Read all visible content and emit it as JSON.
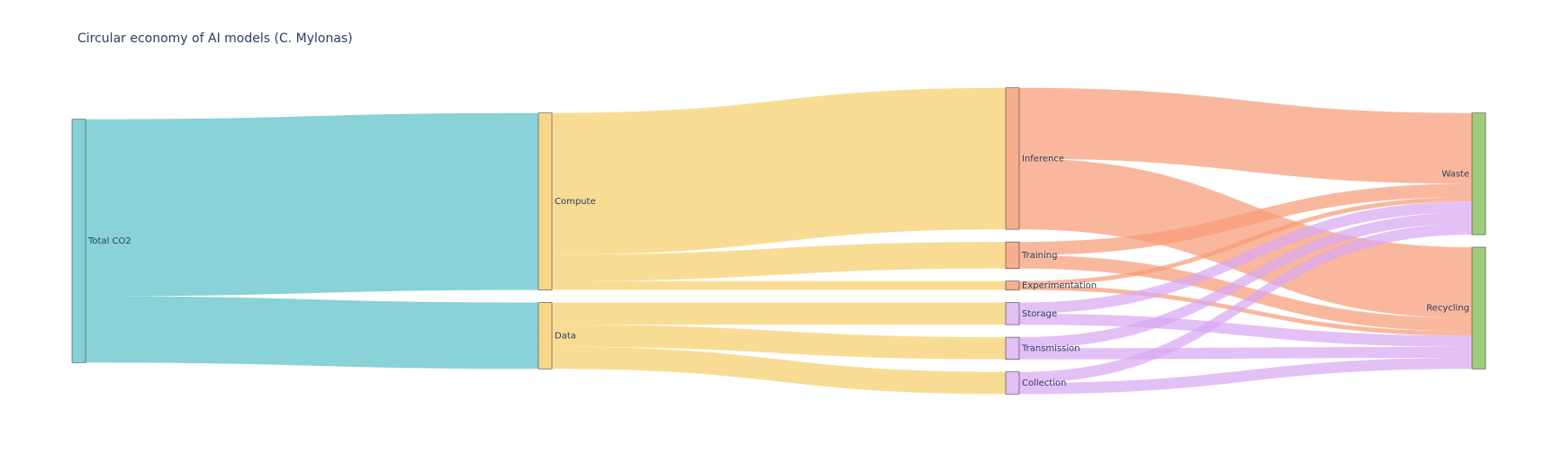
{
  "chart_data": {
    "type": "sankey",
    "title": "Circular economy of AI models (C. Mylonas)",
    "node_colors": {
      "source": "#87d1d6",
      "process": "#f8d78b",
      "model": "#f7ae8d",
      "data": "#e2bff5",
      "end": "#9fcd7c"
    },
    "link_colors": {
      "teal": "#5bc0c7",
      "yellow": "#f6ce6b",
      "salmon": "#f69d77",
      "lilac": "#d8a8f3"
    },
    "nodes": [
      {
        "id": "total",
        "label": "Total CO2",
        "column": 0,
        "color": "source"
      },
      {
        "id": "compute",
        "label": "Compute",
        "column": 1,
        "color": "process"
      },
      {
        "id": "data",
        "label": "Data",
        "column": 1,
        "color": "process"
      },
      {
        "id": "inference",
        "label": "Inference",
        "column": 2,
        "color": "model"
      },
      {
        "id": "training",
        "label": "Training",
        "column": 2,
        "color": "model"
      },
      {
        "id": "experimentation",
        "label": "Experimentation",
        "column": 2,
        "color": "model"
      },
      {
        "id": "storage",
        "label": "Storage",
        "column": 2,
        "color": "data"
      },
      {
        "id": "transmission",
        "label": "Transmission",
        "column": 2,
        "color": "data"
      },
      {
        "id": "collection",
        "label": "Collection",
        "column": 2,
        "color": "data"
      },
      {
        "id": "waste",
        "label": "Waste",
        "column": 3,
        "color": "end"
      },
      {
        "id": "recycling",
        "label": "Recycling",
        "column": 3,
        "color": "end"
      }
    ],
    "links": [
      {
        "source": "total",
        "target": "compute",
        "value": 80,
        "color": "teal"
      },
      {
        "source": "total",
        "target": "data",
        "value": 30,
        "color": "teal"
      },
      {
        "source": "compute",
        "target": "inference",
        "value": 64,
        "color": "yellow"
      },
      {
        "source": "compute",
        "target": "training",
        "value": 12,
        "color": "yellow"
      },
      {
        "source": "compute",
        "target": "experimentation",
        "value": 4,
        "color": "yellow"
      },
      {
        "source": "data",
        "target": "storage",
        "value": 10,
        "color": "yellow"
      },
      {
        "source": "data",
        "target": "transmission",
        "value": 10,
        "color": "yellow"
      },
      {
        "source": "data",
        "target": "collection",
        "value": 10,
        "color": "yellow"
      },
      {
        "source": "inference",
        "target": "waste",
        "value": 32,
        "color": "salmon"
      },
      {
        "source": "inference",
        "target": "recycling",
        "value": 32,
        "color": "salmon"
      },
      {
        "source": "training",
        "target": "waste",
        "value": 6,
        "color": "salmon"
      },
      {
        "source": "training",
        "target": "recycling",
        "value": 6,
        "color": "salmon"
      },
      {
        "source": "experimentation",
        "target": "waste",
        "value": 2,
        "color": "salmon"
      },
      {
        "source": "experimentation",
        "target": "recycling",
        "value": 2,
        "color": "salmon"
      },
      {
        "source": "storage",
        "target": "waste",
        "value": 5,
        "color": "lilac"
      },
      {
        "source": "storage",
        "target": "recycling",
        "value": 5,
        "color": "lilac"
      },
      {
        "source": "transmission",
        "target": "waste",
        "value": 5,
        "color": "lilac"
      },
      {
        "source": "transmission",
        "target": "recycling",
        "value": 5,
        "color": "lilac"
      },
      {
        "source": "collection",
        "target": "waste",
        "value": 5,
        "color": "lilac"
      },
      {
        "source": "collection",
        "target": "recycling",
        "value": 5,
        "color": "lilac"
      }
    ]
  }
}
